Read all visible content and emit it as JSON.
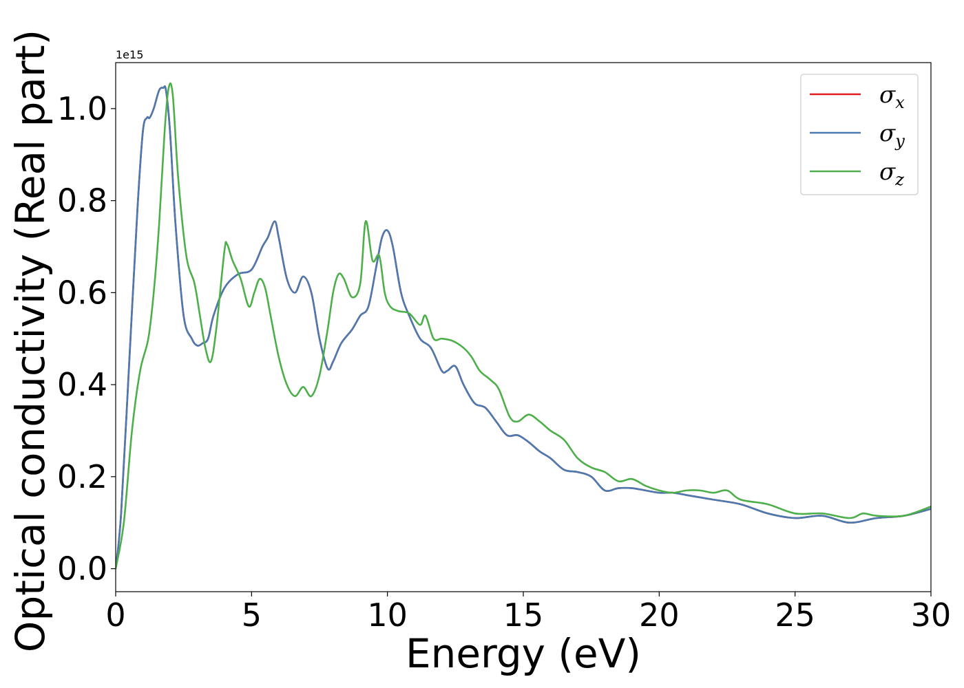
{
  "chart_data": {
    "type": "line",
    "xlabel": "Energy (eV)",
    "ylabel": "Optical conductivity (Real part)",
    "y_offset_label": "1e15",
    "xlim": [
      0,
      30
    ],
    "ylim": [
      -0.05,
      1.1
    ],
    "x_ticks": [
      0,
      5,
      10,
      15,
      20,
      25,
      30
    ],
    "x_tick_labels": [
      "0",
      "5",
      "10",
      "15",
      "20",
      "25",
      "30"
    ],
    "y_ticks": [
      0.0,
      0.2,
      0.4,
      0.6,
      0.8,
      1.0
    ],
    "y_tick_labels": [
      "0.0",
      "0.2",
      "0.4",
      "0.6",
      "0.8",
      "1.0"
    ],
    "grid": false,
    "legend_position": "top-right",
    "series": [
      {
        "name": "σ",
        "subscript": "x",
        "color": "#e41a1c",
        "x": [
          0,
          0.2,
          0.5,
          0.8,
          1.0,
          1.15,
          1.25,
          1.4,
          1.6,
          1.75,
          1.85,
          2.0,
          2.2,
          2.5,
          2.8,
          3.0,
          3.2,
          3.4,
          3.6,
          4.0,
          4.5,
          5.0,
          5.4,
          5.6,
          5.85,
          6.0,
          6.3,
          6.6,
          6.9,
          7.2,
          7.5,
          7.8,
          8.0,
          8.3,
          8.7,
          9.0,
          9.3,
          9.6,
          9.8,
          10.0,
          10.2,
          10.5,
          10.8,
          11.2,
          11.6,
          12.0,
          12.2,
          12.5,
          12.8,
          13.2,
          13.6,
          14.0,
          14.4,
          14.8,
          15.2,
          15.6,
          16.0,
          16.5,
          17.0,
          17.5,
          18.0,
          18.5,
          19.0,
          19.5,
          20.0,
          20.5,
          21.0,
          22.0,
          23.0,
          24.0,
          25.0,
          26.0,
          27.0,
          28.0,
          29.0,
          30.0
        ],
        "values": [
          0.0,
          0.12,
          0.45,
          0.78,
          0.95,
          0.98,
          0.98,
          1.0,
          1.04,
          1.045,
          1.04,
          0.95,
          0.75,
          0.55,
          0.5,
          0.485,
          0.49,
          0.5,
          0.55,
          0.61,
          0.64,
          0.65,
          0.7,
          0.72,
          0.755,
          0.72,
          0.63,
          0.6,
          0.635,
          0.6,
          0.5,
          0.435,
          0.45,
          0.49,
          0.52,
          0.55,
          0.57,
          0.66,
          0.72,
          0.735,
          0.7,
          0.6,
          0.55,
          0.5,
          0.48,
          0.43,
          0.43,
          0.44,
          0.4,
          0.36,
          0.35,
          0.32,
          0.29,
          0.29,
          0.275,
          0.255,
          0.24,
          0.215,
          0.21,
          0.2,
          0.17,
          0.175,
          0.175,
          0.17,
          0.165,
          0.165,
          0.16,
          0.15,
          0.14,
          0.12,
          0.11,
          0.115,
          0.1,
          0.11,
          0.115,
          0.13
        ]
      },
      {
        "name": "σ",
        "subscript": "y",
        "color": "#4a7ab0",
        "x": [
          0,
          0.2,
          0.5,
          0.8,
          1.0,
          1.15,
          1.25,
          1.4,
          1.6,
          1.75,
          1.85,
          2.0,
          2.2,
          2.5,
          2.8,
          3.0,
          3.2,
          3.4,
          3.6,
          4.0,
          4.5,
          5.0,
          5.4,
          5.6,
          5.85,
          6.0,
          6.3,
          6.6,
          6.9,
          7.2,
          7.5,
          7.8,
          8.0,
          8.3,
          8.7,
          9.0,
          9.3,
          9.6,
          9.8,
          10.0,
          10.2,
          10.5,
          10.8,
          11.2,
          11.6,
          12.0,
          12.2,
          12.5,
          12.8,
          13.2,
          13.6,
          14.0,
          14.4,
          14.8,
          15.2,
          15.6,
          16.0,
          16.5,
          17.0,
          17.5,
          18.0,
          18.5,
          19.0,
          19.5,
          20.0,
          20.5,
          21.0,
          22.0,
          23.0,
          24.0,
          25.0,
          26.0,
          27.0,
          28.0,
          29.0,
          30.0
        ],
        "values": [
          0.0,
          0.12,
          0.45,
          0.78,
          0.95,
          0.98,
          0.98,
          1.0,
          1.04,
          1.045,
          1.04,
          0.95,
          0.75,
          0.55,
          0.5,
          0.485,
          0.49,
          0.5,
          0.55,
          0.61,
          0.64,
          0.65,
          0.7,
          0.72,
          0.755,
          0.72,
          0.63,
          0.6,
          0.635,
          0.6,
          0.5,
          0.435,
          0.45,
          0.49,
          0.52,
          0.55,
          0.57,
          0.66,
          0.72,
          0.735,
          0.7,
          0.6,
          0.55,
          0.5,
          0.48,
          0.43,
          0.43,
          0.44,
          0.4,
          0.36,
          0.35,
          0.32,
          0.29,
          0.29,
          0.275,
          0.255,
          0.24,
          0.215,
          0.21,
          0.2,
          0.17,
          0.175,
          0.175,
          0.17,
          0.165,
          0.165,
          0.16,
          0.15,
          0.14,
          0.12,
          0.11,
          0.115,
          0.1,
          0.11,
          0.115,
          0.13
        ]
      },
      {
        "name": "σ",
        "subscript": "z",
        "color": "#4daf4a",
        "x": [
          0,
          0.3,
          0.6,
          0.9,
          1.2,
          1.4,
          1.6,
          1.8,
          1.95,
          2.1,
          2.3,
          2.6,
          2.9,
          3.1,
          3.3,
          3.5,
          3.7,
          4.0,
          4.1,
          4.3,
          4.6,
          4.9,
          5.1,
          5.3,
          5.5,
          5.7,
          6.0,
          6.3,
          6.6,
          6.9,
          7.2,
          7.5,
          7.8,
          8.0,
          8.2,
          8.4,
          8.7,
          9.0,
          9.2,
          9.45,
          9.7,
          9.9,
          10.1,
          10.4,
          10.8,
          11.2,
          11.4,
          11.7,
          12.0,
          12.4,
          12.8,
          13.1,
          13.4,
          13.8,
          14.1,
          14.5,
          14.8,
          15.2,
          15.6,
          16.0,
          16.5,
          17.0,
          17.5,
          18.0,
          18.5,
          19.0,
          19.5,
          20.0,
          20.5,
          21.0,
          21.5,
          22.0,
          22.5,
          23.0,
          24.0,
          25.0,
          26.0,
          27.0,
          27.5,
          28.0,
          29.0,
          30.0
        ],
        "values": [
          0.0,
          0.1,
          0.3,
          0.43,
          0.5,
          0.6,
          0.75,
          0.95,
          1.045,
          1.03,
          0.85,
          0.68,
          0.62,
          0.55,
          0.48,
          0.45,
          0.52,
          0.69,
          0.705,
          0.67,
          0.63,
          0.57,
          0.6,
          0.63,
          0.61,
          0.55,
          0.46,
          0.4,
          0.375,
          0.395,
          0.375,
          0.42,
          0.52,
          0.6,
          0.64,
          0.63,
          0.59,
          0.62,
          0.755,
          0.67,
          0.68,
          0.6,
          0.57,
          0.56,
          0.555,
          0.53,
          0.55,
          0.5,
          0.5,
          0.495,
          0.48,
          0.46,
          0.43,
          0.41,
          0.39,
          0.33,
          0.32,
          0.335,
          0.32,
          0.3,
          0.28,
          0.24,
          0.22,
          0.21,
          0.19,
          0.195,
          0.18,
          0.17,
          0.165,
          0.17,
          0.17,
          0.165,
          0.17,
          0.15,
          0.14,
          0.12,
          0.12,
          0.11,
          0.12,
          0.115,
          0.115,
          0.135
        ]
      }
    ]
  }
}
